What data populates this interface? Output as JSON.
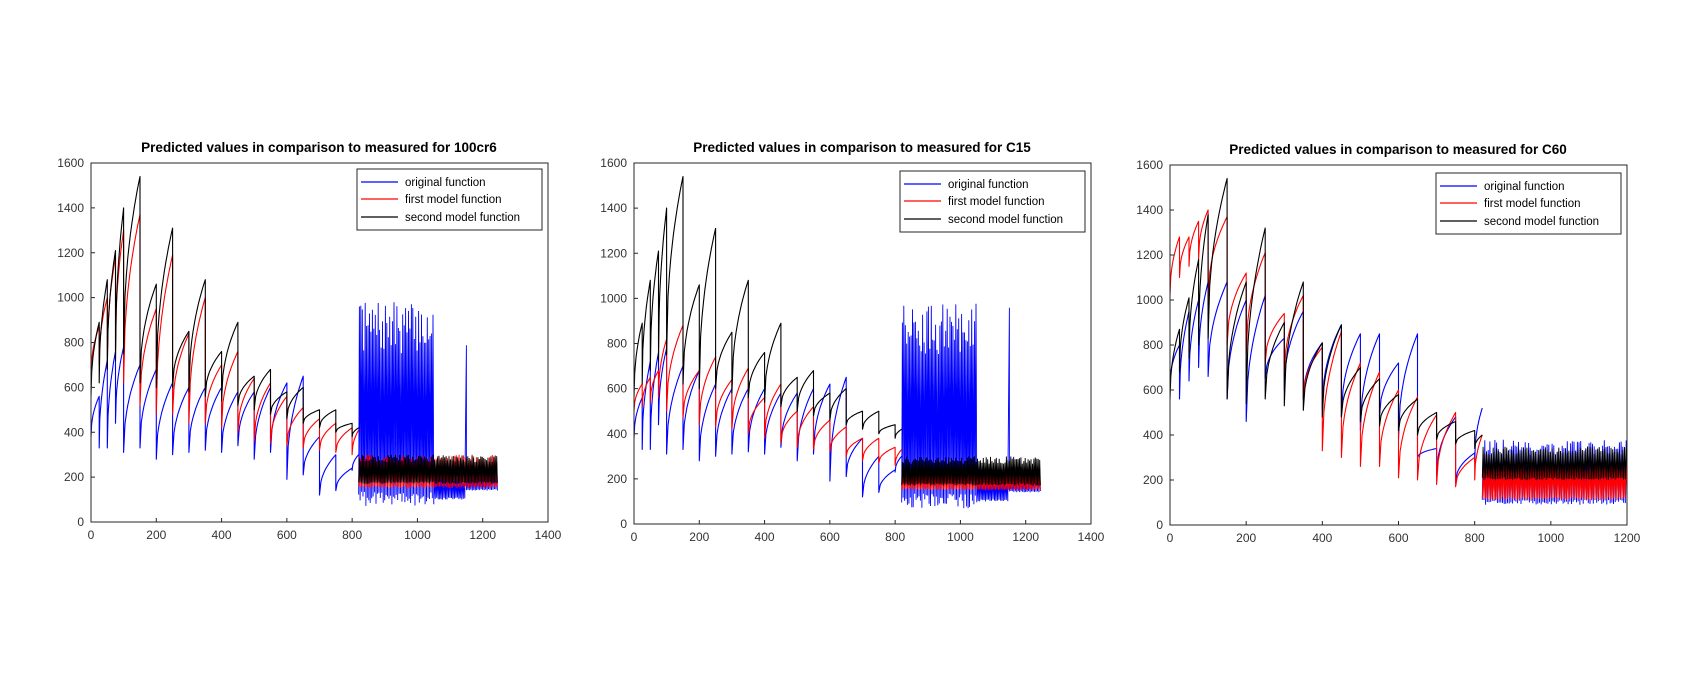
{
  "chart_data": [
    {
      "type": "line",
      "title": "Predicted values in comparison to measured for 100cr6",
      "xlabel": "",
      "ylabel": "",
      "xlim": [
        0,
        1400
      ],
      "ylim": [
        0,
        1600
      ],
      "xticks": [
        0,
        200,
        400,
        600,
        800,
        1000,
        1200,
        1400
      ],
      "yticks": [
        0,
        200,
        400,
        600,
        800,
        1000,
        1200,
        1400,
        1600
      ],
      "grid": false,
      "legend_position": "top-right",
      "series": [
        {
          "name": "original function",
          "color": "#0000ff",
          "cycles": [
            [
              0,
              380,
              560
            ],
            [
              25,
              330,
              720
            ],
            [
              50,
              330,
              760
            ],
            [
              75,
              440,
              780
            ],
            [
              100,
              310,
              700
            ],
            [
              150,
              330,
              680
            ],
            [
              200,
              280,
              620
            ],
            [
              250,
              300,
              600
            ],
            [
              300,
              310,
              600
            ],
            [
              350,
              320,
              600
            ],
            [
              400,
              310,
              580
            ],
            [
              450,
              340,
              580
            ],
            [
              500,
              280,
              600
            ],
            [
              550,
              310,
              620
            ],
            [
              600,
              190,
              650
            ],
            [
              650,
              210,
              380
            ],
            [
              700,
              120,
              300
            ],
            [
              750,
              140,
              240
            ],
            [
              800,
              230,
              300
            ]
          ],
          "noisy": [
            {
              "x_start": 820,
              "x_end": 1050,
              "low": 70,
              "high": 980
            },
            {
              "x_start": 1050,
              "x_end": 1145,
              "low": 100,
              "high": 220
            },
            {
              "x_start": 1145,
              "x_end": 1150,
              "low": 100,
              "high": 1000
            },
            {
              "x_start": 1150,
              "x_end": 1245,
              "low": 140,
              "high": 230
            }
          ]
        },
        {
          "name": "first model function",
          "color": "#ff0000",
          "cycles": [
            [
              0,
              650,
              870
            ],
            [
              25,
              700,
              1000
            ],
            [
              50,
              720,
              1180
            ],
            [
              75,
              760,
              1300
            ],
            [
              100,
              620,
              1370
            ],
            [
              150,
              520,
              950
            ],
            [
              200,
              480,
              1190
            ],
            [
              250,
              480,
              840
            ],
            [
              300,
              440,
              1000
            ],
            [
              350,
              440,
              700
            ],
            [
              400,
              420,
              760
            ],
            [
              450,
              400,
              640
            ],
            [
              500,
              360,
              620
            ],
            [
              550,
              350,
              560
            ],
            [
              600,
              340,
              510
            ],
            [
              650,
              330,
              460
            ],
            [
              700,
              320,
              440
            ],
            [
              750,
              310,
              420
            ],
            [
              800,
              300,
              410
            ]
          ],
          "noisy": [
            {
              "x_start": 820,
              "x_end": 1245,
              "low": 150,
              "high": 300
            }
          ]
        },
        {
          "name": "second model function",
          "color": "#000000",
          "cycles": [
            [
              0,
              560,
              890
            ],
            [
              25,
              620,
              1080
            ],
            [
              50,
              680,
              1210
            ],
            [
              75,
              720,
              1400
            ],
            [
              100,
              750,
              1540
            ],
            [
              150,
              620,
              1060
            ],
            [
              200,
              600,
              1310
            ],
            [
              250,
              600,
              850
            ],
            [
              300,
              580,
              1080
            ],
            [
              350,
              560,
              760
            ],
            [
              400,
              540,
              890
            ],
            [
              450,
              520,
              650
            ],
            [
              500,
              500,
              680
            ],
            [
              550,
              480,
              580
            ],
            [
              600,
              460,
              600
            ],
            [
              650,
              440,
              500
            ],
            [
              700,
              420,
              500
            ],
            [
              750,
              400,
              440
            ],
            [
              800,
              380,
              420
            ]
          ],
          "noisy": [
            {
              "x_start": 820,
              "x_end": 1245,
              "low": 170,
              "high": 300
            }
          ]
        }
      ]
    },
    {
      "type": "line",
      "title": "Predicted values in comparison to measured for C15",
      "xlabel": "",
      "ylabel": "",
      "xlim": [
        0,
        1400
      ],
      "ylim": [
        0,
        1600
      ],
      "xticks": [
        0,
        200,
        400,
        600,
        800,
        1000,
        1200,
        1400
      ],
      "yticks": [
        0,
        200,
        400,
        600,
        800,
        1000,
        1200,
        1400,
        1600
      ],
      "grid": false,
      "legend_position": "top-right",
      "series": [
        {
          "name": "original function",
          "color": "#0000ff",
          "cycles": [
            [
              0,
              380,
              560
            ],
            [
              25,
              330,
              720
            ],
            [
              50,
              330,
              760
            ],
            [
              75,
              440,
              780
            ],
            [
              100,
              310,
              700
            ],
            [
              150,
              330,
              680
            ],
            [
              200,
              280,
              620
            ],
            [
              250,
              300,
              600
            ],
            [
              300,
              310,
              600
            ],
            [
              350,
              320,
              600
            ],
            [
              400,
              310,
              580
            ],
            [
              450,
              340,
              580
            ],
            [
              500,
              280,
              600
            ],
            [
              550,
              310,
              620
            ],
            [
              600,
              190,
              650
            ],
            [
              650,
              210,
              380
            ],
            [
              700,
              120,
              300
            ],
            [
              750,
              140,
              240
            ],
            [
              800,
              230,
              300
            ]
          ],
          "noisy": [
            {
              "x_start": 820,
              "x_end": 1050,
              "low": 70,
              "high": 980
            },
            {
              "x_start": 1050,
              "x_end": 1145,
              "low": 100,
              "high": 220
            },
            {
              "x_start": 1145,
              "x_end": 1150,
              "low": 100,
              "high": 1000
            },
            {
              "x_start": 1150,
              "x_end": 1245,
              "low": 140,
              "high": 230
            }
          ]
        },
        {
          "name": "first model function",
          "color": "#ff0000",
          "cycles": [
            [
              0,
              500,
              620
            ],
            [
              25,
              520,
              650
            ],
            [
              50,
              540,
              680
            ],
            [
              75,
              560,
              820
            ],
            [
              100,
              500,
              880
            ],
            [
              150,
              470,
              680
            ],
            [
              200,
              440,
              740
            ],
            [
              250,
              430,
              640
            ],
            [
              300,
              420,
              690
            ],
            [
              350,
              400,
              560
            ],
            [
              400,
              380,
              620
            ],
            [
              450,
              360,
              500
            ],
            [
              500,
              340,
              520
            ],
            [
              550,
              330,
              460
            ],
            [
              600,
              320,
              430
            ],
            [
              650,
              300,
              380
            ],
            [
              700,
              280,
              380
            ],
            [
              750,
              270,
              340
            ],
            [
              800,
              260,
              330
            ]
          ],
          "noisy": [
            {
              "x_start": 820,
              "x_end": 1245,
              "low": 150,
              "high": 250
            }
          ]
        },
        {
          "name": "second model function",
          "color": "#000000",
          "cycles": [
            [
              0,
              560,
              890
            ],
            [
              25,
              620,
              1080
            ],
            [
              50,
              680,
              1210
            ],
            [
              75,
              720,
              1400
            ],
            [
              100,
              750,
              1540
            ],
            [
              150,
              620,
              1060
            ],
            [
              200,
              600,
              1310
            ],
            [
              250,
              600,
              850
            ],
            [
              300,
              580,
              1080
            ],
            [
              350,
              560,
              760
            ],
            [
              400,
              540,
              890
            ],
            [
              450,
              520,
              650
            ],
            [
              500,
              500,
              680
            ],
            [
              550,
              480,
              580
            ],
            [
              600,
              460,
              600
            ],
            [
              650,
              440,
              500
            ],
            [
              700,
              420,
              500
            ],
            [
              750,
              400,
              440
            ],
            [
              800,
              380,
              420
            ]
          ],
          "noisy": [
            {
              "x_start": 820,
              "x_end": 1245,
              "low": 170,
              "high": 300
            }
          ]
        }
      ]
    },
    {
      "type": "line",
      "title": "Predicted values in comparison to measured for C60",
      "xlabel": "",
      "ylabel": "",
      "xlim": [
        0,
        1200
      ],
      "ylim": [
        0,
        1600
      ],
      "xticks": [
        0,
        200,
        400,
        600,
        800,
        1000,
        1200
      ],
      "yticks": [
        0,
        200,
        400,
        600,
        800,
        1000,
        1200,
        1400,
        1600
      ],
      "grid": false,
      "legend_position": "top-right",
      "series": [
        {
          "name": "original function",
          "color": "#0000ff",
          "cycles": [
            [
              0,
              620,
              800
            ],
            [
              25,
              560,
              950
            ],
            [
              50,
              640,
              1000
            ],
            [
              75,
              700,
              1080
            ],
            [
              100,
              660,
              1080
            ],
            [
              150,
              560,
              1000
            ],
            [
              200,
              460,
              1020
            ],
            [
              250,
              650,
              830
            ],
            [
              300,
              600,
              950
            ],
            [
              350,
              560,
              810
            ],
            [
              400,
              520,
              890
            ],
            [
              450,
              480,
              850
            ],
            [
              500,
              420,
              850
            ],
            [
              550,
              480,
              720
            ],
            [
              600,
              380,
              850
            ],
            [
              650,
              300,
              340
            ],
            [
              700,
              220,
              480
            ],
            [
              750,
              190,
              320
            ],
            [
              800,
              280,
              520
            ]
          ],
          "noisy": [
            {
              "x_start": 820,
              "x_end": 1200,
              "low": 90,
              "high": 380
            }
          ]
        },
        {
          "name": "first model function",
          "color": "#ff0000",
          "cycles": [
            [
              0,
              1020,
              1280
            ],
            [
              25,
              1100,
              1280
            ],
            [
              50,
              1150,
              1350
            ],
            [
              75,
              1180,
              1400
            ],
            [
              100,
              1000,
              1370
            ],
            [
              150,
              800,
              1120
            ],
            [
              200,
              760,
              1210
            ],
            [
              250,
              720,
              940
            ],
            [
              300,
              660,
              1020
            ],
            [
              350,
              560,
              790
            ],
            [
              400,
              330,
              860
            ],
            [
              450,
              300,
              720
            ],
            [
              500,
              260,
              680
            ],
            [
              550,
              260,
              600
            ],
            [
              600,
              210,
              570
            ],
            [
              650,
              200,
              490
            ],
            [
              700,
              180,
              500
            ],
            [
              750,
              170,
              300
            ],
            [
              800,
              200,
              400
            ]
          ],
          "noisy": [
            {
              "x_start": 820,
              "x_end": 1200,
              "low": 110,
              "high": 280
            }
          ]
        },
        {
          "name": "second model function",
          "color": "#000000",
          "cycles": [
            [
              0,
              560,
              870
            ],
            [
              25,
              680,
              1010
            ],
            [
              50,
              740,
              1180
            ],
            [
              75,
              800,
              1380
            ],
            [
              100,
              830,
              1540
            ],
            [
              150,
              560,
              1080
            ],
            [
              200,
              540,
              1320
            ],
            [
              250,
              560,
              900
            ],
            [
              300,
              530,
              1080
            ],
            [
              350,
              510,
              810
            ],
            [
              400,
              480,
              890
            ],
            [
              450,
              480,
              700
            ],
            [
              500,
              460,
              650
            ],
            [
              550,
              440,
              580
            ],
            [
              600,
              420,
              560
            ],
            [
              650,
              400,
              500
            ],
            [
              700,
              380,
              460
            ],
            [
              750,
              360,
              420
            ],
            [
              800,
              340,
              400
            ]
          ],
          "noisy": [
            {
              "x_start": 820,
              "x_end": 1200,
              "low": 200,
              "high": 350
            }
          ]
        }
      ]
    }
  ]
}
